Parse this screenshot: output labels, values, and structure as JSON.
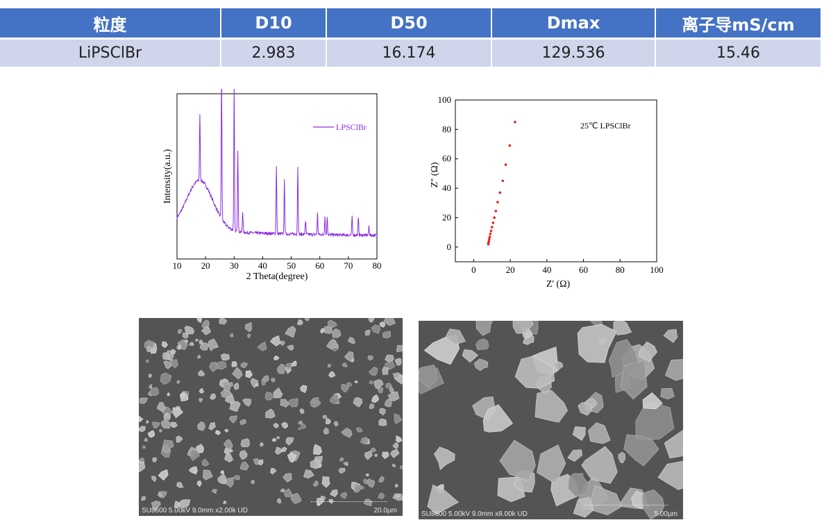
{
  "table": {
    "headers": [
      "粒度",
      "D10",
      "D50",
      "Dmax",
      "离子导mS/cm"
    ],
    "row": [
      "LiPSClBr",
      "2.983",
      "16.174",
      "129.536",
      "15.46"
    ],
    "header_color": "#4472c4",
    "row_color": "#cfd5ea"
  },
  "chart_data": [
    {
      "type": "line",
      "title": "",
      "xlabel": "2 Theta(degree)",
      "ylabel": "Intensity(a.u.)",
      "xlim": [
        10,
        80
      ],
      "x_ticks": [
        "10",
        "20",
        "30",
        "40",
        "50",
        "60",
        "70",
        "80"
      ],
      "y_ticks_shown": false,
      "legend": "LPSClBr",
      "legend_position": "top-right",
      "series_color": "#8a2be2",
      "background_hump": {
        "center": 18,
        "relative_height": 0.33
      },
      "peaks": [
        {
          "x": 18.0,
          "relative_height": 0.43
        },
        {
          "x": 25.6,
          "relative_height": 0.94
        },
        {
          "x": 30.0,
          "relative_height": 0.94
        },
        {
          "x": 31.3,
          "relative_height": 0.54
        },
        {
          "x": 33.0,
          "relative_height": 0.14
        },
        {
          "x": 44.8,
          "relative_height": 0.45
        },
        {
          "x": 47.6,
          "relative_height": 0.35
        },
        {
          "x": 52.3,
          "relative_height": 0.44
        },
        {
          "x": 55.0,
          "relative_height": 0.09
        },
        {
          "x": 59.2,
          "relative_height": 0.14
        },
        {
          "x": 61.8,
          "relative_height": 0.12
        },
        {
          "x": 62.6,
          "relative_height": 0.12
        },
        {
          "x": 71.3,
          "relative_height": 0.12
        },
        {
          "x": 73.5,
          "relative_height": 0.11
        },
        {
          "x": 77.2,
          "relative_height": 0.06
        }
      ]
    },
    {
      "type": "scatter",
      "title": "",
      "annotation": "25℃ LPSClBr",
      "xlabel": "Z' (Ω)",
      "ylabel": "Z'' (Ω)",
      "xlim": [
        -10,
        100
      ],
      "ylim": [
        -10,
        100
      ],
      "x_ticks": [
        "0",
        "20",
        "40",
        "60",
        "80",
        "100"
      ],
      "y_ticks": [
        "0",
        "20",
        "40",
        "60",
        "80",
        "100"
      ],
      "marker_color": "#e8201e",
      "x": [
        8.0,
        8.1,
        8.3,
        8.5,
        8.8,
        9.1,
        9.5,
        10.0,
        10.6,
        11.3,
        12.1,
        13.1,
        14.4,
        15.9,
        17.5,
        19.7,
        22.6
      ],
      "y": [
        2.0,
        3.0,
        4.0,
        5.5,
        7.0,
        9.0,
        11.0,
        13.5,
        16.5,
        20.0,
        24.5,
        30.5,
        37.0,
        45.0,
        56.0,
        69.0,
        85.0
      ]
    }
  ],
  "sem": [
    {
      "caption": "SU8600 5.00kV 9.0mm x2.00k UD",
      "scale": "20.0µm"
    },
    {
      "caption": "SU8600 5.00kV 9.0mm x8.00k UD",
      "scale": "5.00µm"
    }
  ]
}
